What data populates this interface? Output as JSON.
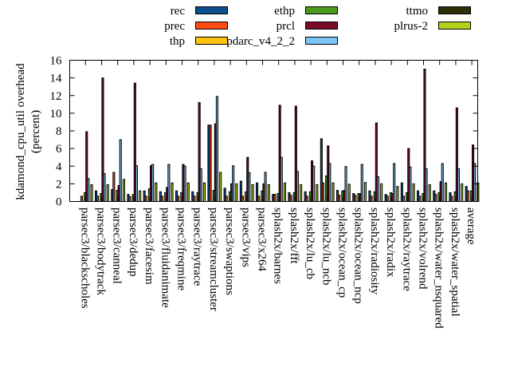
{
  "chart_data": {
    "type": "bar",
    "title": "",
    "xlabel": "",
    "ylabel": "kdamond_cpu_util overhead",
    "ylabel_unit": "(percent)",
    "ylim": [
      0,
      16
    ],
    "yticks": [
      "0",
      "2",
      "4",
      "6",
      "8",
      "10",
      "12",
      "14",
      "16"
    ],
    "grid": false,
    "legend_placement": "top-outside",
    "categories": [
      "parsec3/blackscholes",
      "parsec3/bodytrack",
      "parsec3/canneal",
      "parsec3/dedup",
      "parsec3/facesim",
      "parsec3/fluidanimate",
      "parsec3/freqmine",
      "parsec3/raytrace",
      "parsec3/streamcluster",
      "parsec3/swaptions",
      "parsec3/vips",
      "parsec3/x264",
      "splash2x/barnes",
      "splash2x/fft",
      "splash2x/lu_cb",
      "splash2x/lu_ncb",
      "splash2x/ocean_cp",
      "splash2x/ocean_ncp",
      "splash2x/radiosity",
      "splash2x/radix",
      "splash2x/raytrace",
      "splash2x/volrend",
      "splash2x/water_nsquared",
      "splash2x/water_spatial",
      "average"
    ],
    "series": [
      {
        "name": "rec",
        "color": "#0b4f8f",
        "values": [
          0,
          1.2,
          1.35,
          0.8,
          1.2,
          1.1,
          1.2,
          1.1,
          8.65,
          1.5,
          2.3,
          2.1,
          0.8,
          1.0,
          1.1,
          7.1,
          1.26,
          0.9,
          1.2,
          0.8,
          2.1,
          1.2,
          1.2,
          1.0,
          1.7
        ]
      },
      {
        "name": "prec",
        "color": "#ff4a14",
        "values": [
          0.6,
          0.6,
          3.3,
          0.55,
          0.6,
          0.6,
          0.6,
          0.6,
          8.65,
          0.6,
          0.6,
          0.6,
          0.8,
          0.7,
          0.6,
          2.1,
          0.72,
          0.7,
          0.6,
          0.6,
          0.6,
          0.6,
          0.8,
          0.6,
          1.2
        ]
      },
      {
        "name": "thp",
        "color": "#ffc20e",
        "values": [
          0,
          0,
          0,
          0,
          0,
          0,
          0,
          0,
          0,
          0,
          0,
          0,
          0,
          0,
          0,
          0,
          0,
          0,
          0,
          0,
          0,
          0,
          0,
          0,
          0
        ]
      },
      {
        "name": "ethp",
        "color": "#4a9a1c",
        "values": [
          1.0,
          0.9,
          1.26,
          0.8,
          1.45,
          1.0,
          1.0,
          1.0,
          1.26,
          1.1,
          1.1,
          1.2,
          0.9,
          1.0,
          1.1,
          2.9,
          1.17,
          0.9,
          1.1,
          1.0,
          1.0,
          0.9,
          1.0,
          1.1,
          1.2
        ]
      },
      {
        "name": "prcl",
        "color": "#7a0a26",
        "values": [
          7.9,
          14.0,
          1.8,
          13.4,
          4.05,
          1.6,
          4.2,
          11.2,
          8.8,
          2.0,
          5.0,
          2.0,
          10.9,
          10.8,
          4.6,
          6.3,
          1.26,
          0.9,
          8.9,
          0.9,
          6.0,
          15.0,
          2.25,
          10.6,
          6.4
        ]
      },
      {
        "name": "pdarc_v4_2_2",
        "color": "#7cc4f4",
        "values": [
          2.6,
          3.15,
          7.0,
          4.05,
          4.2,
          4.2,
          4.0,
          3.7,
          11.9,
          4.05,
          3.25,
          3.3,
          5.0,
          3.4,
          4.0,
          4.3,
          3.96,
          4.2,
          2.8,
          4.3,
          3.9,
          3.7,
          4.3,
          3.7,
          4.3
        ]
      },
      {
        "name": "ttmo",
        "color": "#2d3008",
        "values": [
          0,
          0,
          0,
          0,
          0,
          0,
          0,
          0,
          0,
          0,
          0,
          0,
          0,
          0,
          0,
          0,
          0,
          0,
          0,
          0,
          0,
          0,
          0,
          0,
          0
        ]
      },
      {
        "name": "plrus-2",
        "color": "#b2d118",
        "values": [
          1.9,
          1.9,
          2.5,
          1.2,
          2.1,
          2.1,
          2.1,
          2.1,
          3.3,
          2.0,
          1.9,
          1.9,
          2.1,
          1.9,
          1.9,
          2.1,
          1.95,
          2.15,
          2.0,
          1.7,
          2.0,
          1.9,
          2.1,
          2.0,
          2.1
        ]
      }
    ]
  }
}
